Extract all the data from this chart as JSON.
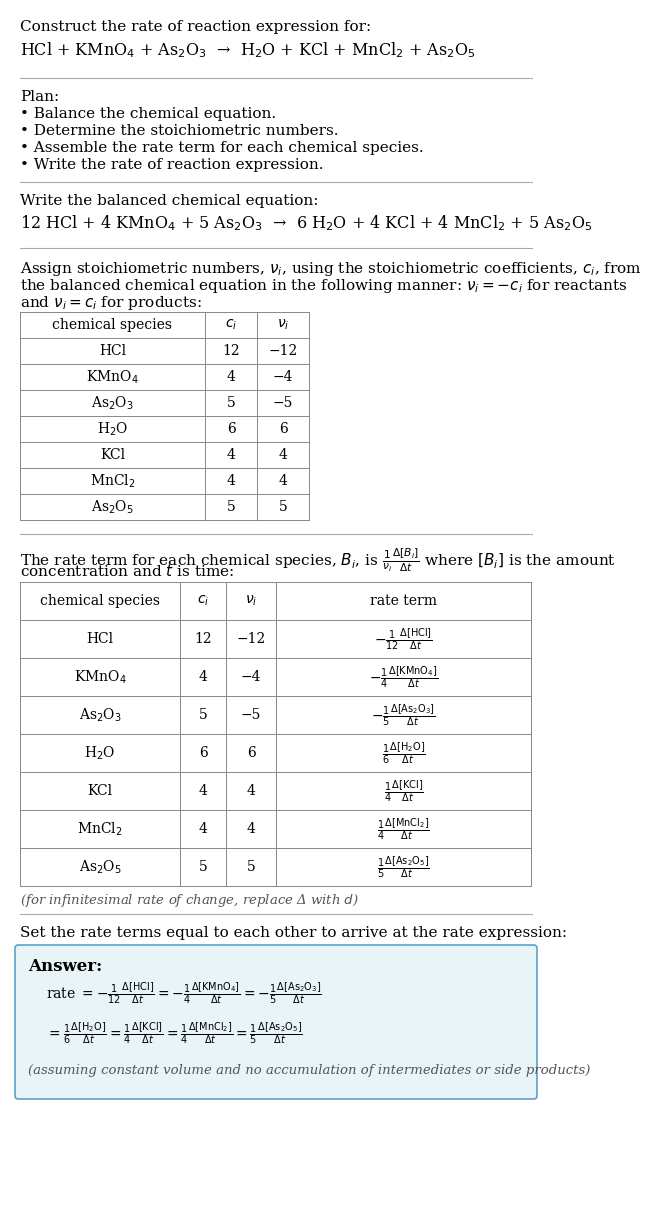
{
  "bg_color": "#ffffff",
  "text_color": "#000000",
  "title_line1": "Construct the rate of reaction expression for:",
  "reaction_unbalanced": "HCl + KMnO$_4$ + As$_2$O$_3$  →  H$_2$O + KCl + MnCl$_2$ + As$_2$O$_5$",
  "plan_header": "Plan:",
  "plan_items": [
    "• Balance the chemical equation.",
    "• Determine the stoichiometric numbers.",
    "• Assemble the rate term for each chemical species.",
    "• Write the rate of reaction expression."
  ],
  "balanced_header": "Write the balanced chemical equation:",
  "reaction_balanced": "12 HCl + 4 KMnO$_4$ + 5 As$_2$O$_3$  →  6 H$_2$O + 4 KCl + 4 MnCl$_2$ + 5 As$_2$O$_5$",
  "stoich_assign_text1": "Assign stoichiometric numbers, $\\nu_i$, using the stoichiometric coefficients, $c_i$, from",
  "stoich_assign_text2": "the balanced chemical equation in the following manner: $\\nu_i = -c_i$ for reactants",
  "stoich_assign_text3": "and $\\nu_i = c_i$ for products:",
  "table1_headers": [
    "chemical species",
    "$c_i$",
    "$\\nu_i$"
  ],
  "table1_rows": [
    [
      "HCl",
      "12",
      "−12"
    ],
    [
      "KMnO$_4$",
      "4",
      "−4"
    ],
    [
      "As$_2$O$_3$",
      "5",
      "−5"
    ],
    [
      "H$_2$O",
      "6",
      "6"
    ],
    [
      "KCl",
      "4",
      "4"
    ],
    [
      "MnCl$_2$",
      "4",
      "4"
    ],
    [
      "As$_2$O$_5$",
      "5",
      "5"
    ]
  ],
  "rate_term_text1": "The rate term for each chemical species, $B_i$, is $\\frac{1}{\\nu_i}\\frac{\\Delta[B_i]}{\\Delta t}$ where $[B_i]$ is the amount",
  "rate_term_text2": "concentration and $t$ is time:",
  "table2_headers": [
    "chemical species",
    "$c_i$",
    "$\\nu_i$",
    "rate term"
  ],
  "table2_rows": [
    [
      "HCl",
      "12",
      "−12",
      "$-\\frac{1}{12}\\frac{\\Delta[\\mathrm{HCl}]}{\\Delta t}$"
    ],
    [
      "KMnO$_4$",
      "4",
      "−4",
      "$-\\frac{1}{4}\\frac{\\Delta[\\mathrm{KMnO_4}]}{\\Delta t}$"
    ],
    [
      "As$_2$O$_3$",
      "5",
      "−5",
      "$-\\frac{1}{5}\\frac{\\Delta[\\mathrm{As_2O_3}]}{\\Delta t}$"
    ],
    [
      "H$_2$O",
      "6",
      "6",
      "$\\frac{1}{6}\\frac{\\Delta[\\mathrm{H_2O}]}{\\Delta t}$"
    ],
    [
      "KCl",
      "4",
      "4",
      "$\\frac{1}{4}\\frac{\\Delta[\\mathrm{KCl}]}{\\Delta t}$"
    ],
    [
      "MnCl$_2$",
      "4",
      "4",
      "$\\frac{1}{4}\\frac{\\Delta[\\mathrm{MnCl_2}]}{\\Delta t}$"
    ],
    [
      "As$_2$O$_5$",
      "5",
      "5",
      "$\\frac{1}{5}\\frac{\\Delta[\\mathrm{As_2O_5}]}{\\Delta t}$"
    ]
  ],
  "infinitesimal_note": "(for infinitesimal rate of change, replace Δ with $d$)",
  "set_rate_text": "Set the rate terms equal to each other to arrive at the rate expression:",
  "answer_box_color": "#e8f4f8",
  "answer_box_border": "#5ba3c9",
  "answer_label": "Answer:",
  "answer_rate_line1": "rate $= -\\frac{1}{12}\\frac{\\Delta[\\mathrm{HCl}]}{\\Delta t} = -\\frac{1}{4}\\frac{\\Delta[\\mathrm{KMnO_4}]}{\\Delta t} = -\\frac{1}{5}\\frac{\\Delta[\\mathrm{As_2O_3}]}{\\Delta t}$",
  "answer_rate_line2": "$= \\frac{1}{6}\\frac{\\Delta[\\mathrm{H_2O}]}{\\Delta t} = \\frac{1}{4}\\frac{\\Delta[\\mathrm{KCl}]}{\\Delta t} = \\frac{1}{4}\\frac{\\Delta[\\mathrm{MnCl_2}]}{\\Delta t} = \\frac{1}{5}\\frac{\\Delta[\\mathrm{As_2O_5}]}{\\Delta t}$",
  "answer_footnote": "(assuming constant volume and no accumulation of intermediates or side products)"
}
